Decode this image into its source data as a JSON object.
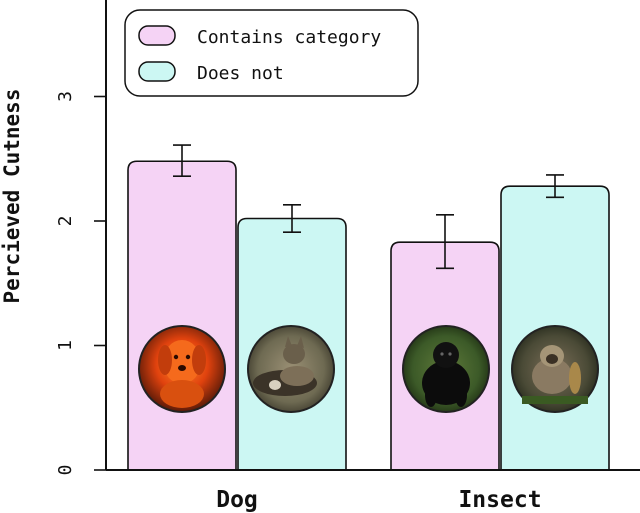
{
  "chart_data": {
    "type": "bar",
    "ylabel": "Percieved Cutness",
    "categories": [
      "Dog",
      "Insect"
    ],
    "yticks": [
      "0",
      "1",
      "2",
      "3"
    ],
    "ylim": [
      0,
      3.75
    ],
    "series": [
      {
        "name": "Contains category",
        "color": "#f5d3f5",
        "values": [
          2.48,
          1.83
        ],
        "error_low": [
          2.36,
          1.62
        ],
        "error_high": [
          2.61,
          2.05
        ]
      },
      {
        "name": "Does not",
        "color": "#ccf7f3",
        "values": [
          2.02,
          2.28
        ],
        "error_low": [
          1.91,
          2.19
        ],
        "error_high": [
          2.13,
          2.37
        ]
      }
    ],
    "legend": "top-left",
    "grid": false,
    "images": [
      {
        "category": "Dog",
        "series": "Contains category",
        "icon": "orange-dog-photo"
      },
      {
        "category": "Dog",
        "series": "Does not",
        "icon": "cat-and-kitten-photo"
      },
      {
        "category": "Insect",
        "series": "Contains category",
        "icon": "black-monkey-photo"
      },
      {
        "category": "Insect",
        "series": "Does not",
        "icon": "grey-monkey-photo"
      }
    ]
  }
}
